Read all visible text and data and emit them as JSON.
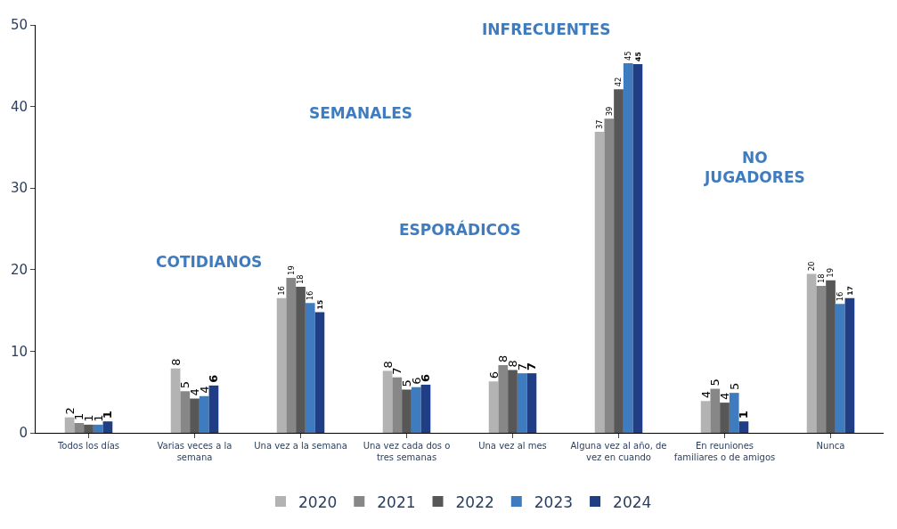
{
  "chart_data": {
    "type": "bar",
    "categories": [
      "Todos los días",
      "Varias veces a la semana",
      "Una vez a la semana",
      "Una vez cada dos o tres semanas",
      "Una vez al mes",
      "Alguna vez al año, de vez en cuando",
      "En reuniones familiares o de amigos",
      "Nunca"
    ],
    "series": [
      {
        "name": "2020",
        "color": "#b3b3b3",
        "values": [
          1.9,
          7.9,
          16.5,
          7.6,
          6.3,
          36.9,
          3.9,
          19.5
        ],
        "value_labels": [
          "2",
          "8",
          "16",
          "8",
          "6",
          "37",
          "4",
          "20"
        ]
      },
      {
        "name": "2021",
        "color": "#878787",
        "values": [
          1.2,
          5.1,
          19.0,
          6.8,
          8.3,
          38.5,
          5.4,
          18.0
        ],
        "value_labels": [
          "1",
          "5",
          "19",
          "7",
          "8",
          "39",
          "5",
          "18"
        ]
      },
      {
        "name": "2022",
        "color": "#575757",
        "values": [
          1.0,
          4.2,
          17.9,
          5.3,
          7.7,
          42.1,
          3.7,
          18.7
        ],
        "value_labels": [
          "1",
          "4",
          "18",
          "5",
          "8",
          "42",
          "4",
          "19"
        ]
      },
      {
        "name": "2023",
        "color": "#3f7cbf",
        "values": [
          1.0,
          4.5,
          15.9,
          5.6,
          7.3,
          45.3,
          4.9,
          15.8
        ],
        "value_labels": [
          "1",
          "4",
          "16",
          "6",
          "7",
          "45",
          "5",
          "16"
        ]
      },
      {
        "name": "2024",
        "color": "#1f3e85",
        "values": [
          1.4,
          5.8,
          14.8,
          5.9,
          7.3,
          45.2,
          1.4,
          16.5
        ],
        "value_labels": [
          "1",
          "6",
          "15",
          "6",
          "7",
          "45",
          "1",
          "17"
        ]
      }
    ],
    "annotations": [
      "COTIDIANOS",
      "SEMANALES",
      "ESPORÁDICOS",
      "INFRECUENTES",
      "NO\nJUGADORES"
    ],
    "ylim": [
      0,
      50
    ],
    "yticks": [
      0,
      10,
      20,
      30,
      40,
      50
    ],
    "legend": "bottom"
  }
}
